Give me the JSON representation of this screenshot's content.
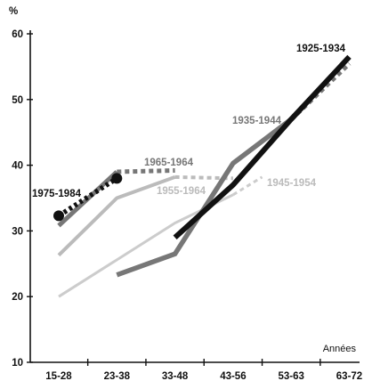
{
  "chart_data": {
    "type": "line",
    "title": "",
    "ylabel": "%",
    "xlabel": "Années",
    "categories": [
      "15-28",
      "23-38",
      "33-48",
      "43-56",
      "53-63",
      "63-72"
    ],
    "ylim": [
      10,
      60
    ],
    "yticks": [
      10,
      20,
      30,
      40,
      50,
      60
    ],
    "legend": "none",
    "grid": false,
    "series": [
      {
        "name": "1975-1984",
        "color": "#111111",
        "style": "dotted",
        "markers": true,
        "points": [
          [
            0,
            32.3
          ],
          [
            1,
            38.0
          ]
        ]
      },
      {
        "name": "1965-1964",
        "color": "#777777",
        "points": [
          [
            0,
            30.8
          ],
          [
            1,
            39.0
          ]
        ],
        "dashed_points": [
          [
            1,
            39.0
          ],
          [
            2,
            39.2
          ]
        ]
      },
      {
        "name": "1955-1964",
        "color": "#bbbbbb",
        "points": [
          [
            0,
            26.3
          ],
          [
            1,
            35.0
          ],
          [
            2,
            38.2
          ]
        ],
        "dashed_points": [
          [
            2,
            38.2
          ],
          [
            3,
            38.0
          ]
        ]
      },
      {
        "name": "1945-1954",
        "color": "#cccccc",
        "points": [
          [
            0,
            20.0
          ],
          [
            2,
            31.2
          ],
          [
            3,
            35.5
          ]
        ],
        "dashed_points": [
          [
            3,
            35.5
          ],
          [
            3.5,
            38.2
          ]
        ]
      },
      {
        "name": "1935-1944",
        "color": "#777777",
        "points": [
          [
            1,
            23.3
          ],
          [
            2,
            26.5
          ],
          [
            3,
            40.3
          ],
          [
            4,
            47.0
          ]
        ],
        "dashed_points": [
          [
            4,
            47.0
          ],
          [
            5,
            55.5
          ]
        ]
      },
      {
        "name": "1925-1934",
        "color": "#111111",
        "points": [
          [
            2,
            29.0
          ],
          [
            3,
            37.0
          ],
          [
            4,
            47.0
          ],
          [
            5,
            56.5
          ]
        ]
      }
    ]
  }
}
